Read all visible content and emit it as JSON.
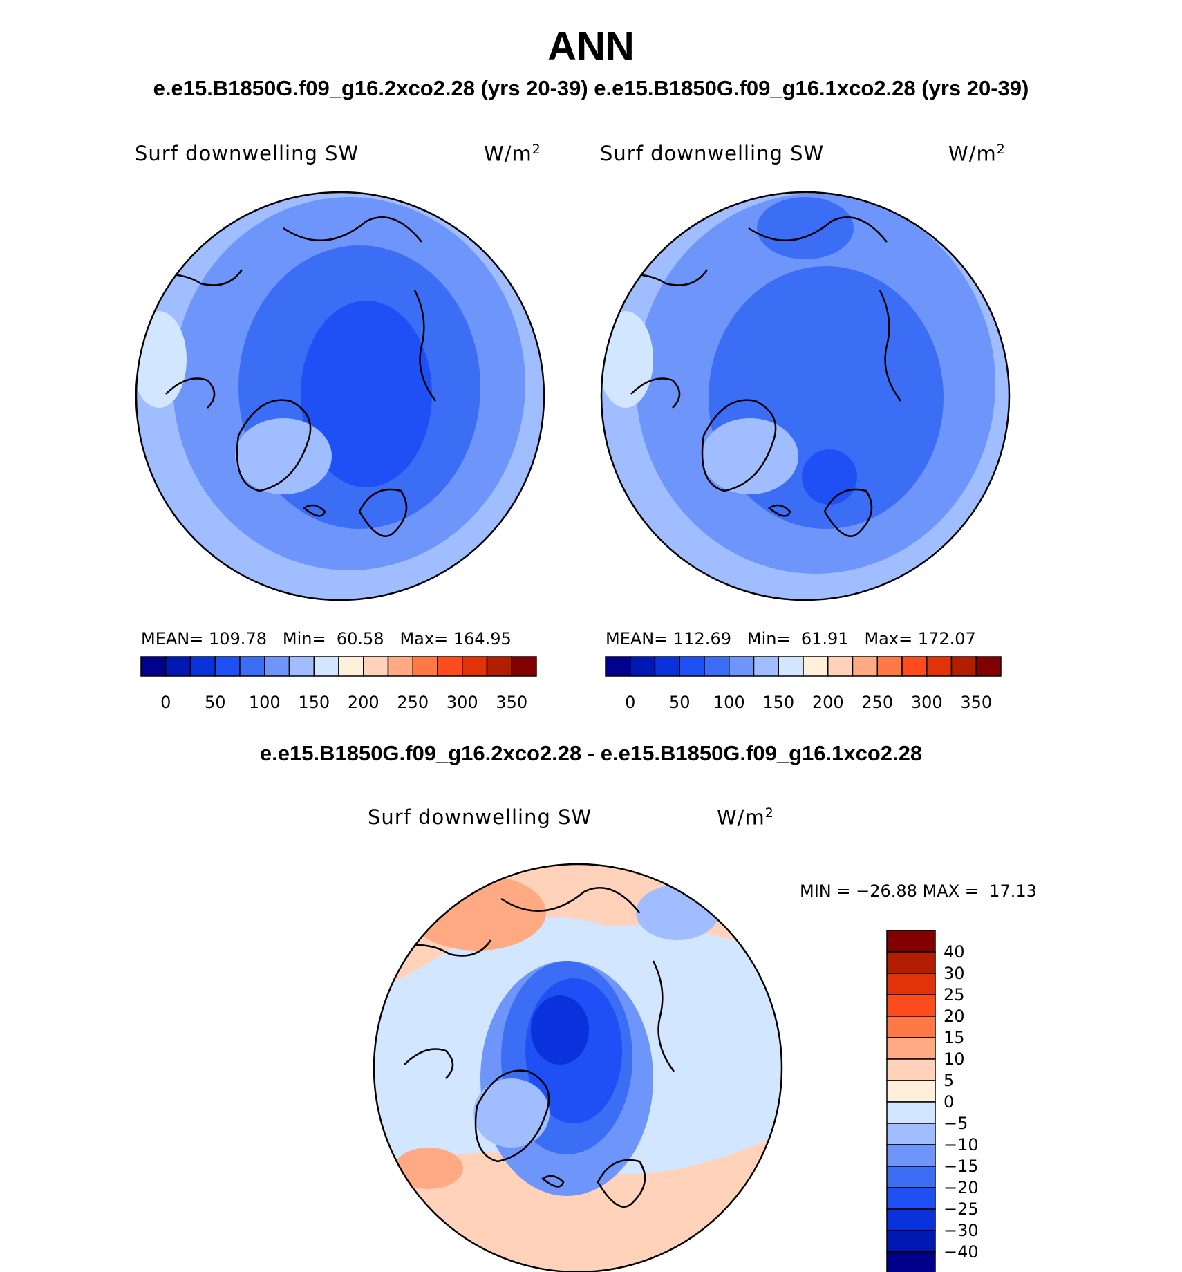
{
  "page": {
    "title": "ANN",
    "subtitle_top": "e.e15.B1850G.f09_g16.2xco2.28 (yrs 20-39) e.e15.B1850G.f09_g16.1xco2.28 (yrs 20-39)",
    "subtitle_diff": "e.e15.B1850G.f09_g16.2xco2.28 - e.e15.B1850G.f09_g16.1xco2.28"
  },
  "colors": {
    "abs": [
      "#00008c",
      "#0019b4",
      "#0a32dc",
      "#1e50f5",
      "#3c6ef5",
      "#6e96fa",
      "#a0beff",
      "#d2e6ff",
      "#fff0dc",
      "#ffd2b9",
      "#ffaa82",
      "#ff7846",
      "#ff4b1e",
      "#e1320a",
      "#b41e00",
      "#820000"
    ],
    "diff": [
      "#00008c",
      "#0019b4",
      "#0a32dc",
      "#1e50f5",
      "#3c6ef5",
      "#6e96fa",
      "#a0beff",
      "#d2e6ff",
      "#fff0dc",
      "#ffd2b9",
      "#ffaa82",
      "#ff7846",
      "#ff4b1e",
      "#e1320a",
      "#b41e00",
      "#820000"
    ]
  },
  "chart_data": [
    {
      "type": "heatmap",
      "panel": "2xco2",
      "title": "Surf downwelling SW",
      "units": "W/m",
      "units_sup": "2",
      "mean_label": "MEAN=",
      "mean": "109.78",
      "min_label": "Min=",
      "min": "60.58",
      "max_label": "Max=",
      "max": "164.95",
      "colorbar_ticks": [
        "0",
        "50",
        "100",
        "150",
        "200",
        "250",
        "300",
        "350"
      ],
      "levels": [
        0,
        25,
        50,
        75,
        100,
        125,
        150,
        175,
        200,
        225,
        250,
        275,
        300,
        325,
        350
      ]
    },
    {
      "type": "heatmap",
      "panel": "1xco2",
      "title": "Surf downwelling SW",
      "units": "W/m",
      "units_sup": "2",
      "mean_label": "MEAN=",
      "mean": "112.69",
      "min_label": "Min=",
      "min": "61.91",
      "max_label": "Max=",
      "max": "172.07",
      "colorbar_ticks": [
        "0",
        "50",
        "100",
        "150",
        "200",
        "250",
        "300",
        "350"
      ],
      "levels": [
        0,
        25,
        50,
        75,
        100,
        125,
        150,
        175,
        200,
        225,
        250,
        275,
        300,
        325,
        350
      ]
    },
    {
      "type": "heatmap",
      "panel": "difference",
      "title": "Surf downwelling SW",
      "units": "W/m",
      "units_sup": "2",
      "min_label": "MIN =",
      "min": "−26.88",
      "max_label": "MAX =",
      "max": "17.13",
      "colorbar_ticks": [
        "40",
        "30",
        "25",
        "20",
        "15",
        "10",
        "5",
        "0",
        "−5",
        "−10",
        "−15",
        "−20",
        "−25",
        "−30",
        "−40"
      ],
      "levels": [
        -40,
        -30,
        -25,
        -20,
        -15,
        -10,
        -5,
        0,
        5,
        10,
        15,
        20,
        25,
        30,
        40
      ]
    }
  ]
}
